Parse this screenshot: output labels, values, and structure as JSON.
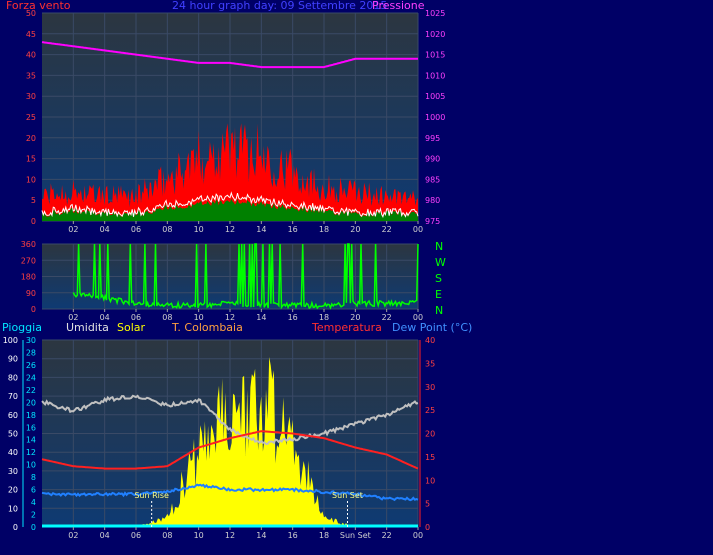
{
  "header": {
    "title": "24 hour graph day: 09 Settembre 2015",
    "left_label": "Forza vento",
    "right_label": "Pressione"
  },
  "compass": [
    "N",
    "W",
    "S",
    "E",
    "N"
  ],
  "bottom_labels": {
    "rain": "Pioggia",
    "humidity": "Umidita",
    "solar": "Solar",
    "station": "T. Colombaia",
    "temperature": "Temperatura",
    "dewpoint": "Dew Point (°C)"
  },
  "annotations": {
    "sunrise": "Sun Rise",
    "sunset": "Sun Set"
  },
  "colors": {
    "wind_gust": "#ff0000",
    "wind_avg": "#ffffff",
    "wind_fill": "#008000",
    "pressure": "#ff00ff",
    "direction": "#00ff00",
    "humidity": "#c0c0c0",
    "solar": "#ffff00",
    "temperature": "#ff2020",
    "dewpoint": "#2080ff",
    "rain": "#00ffff"
  },
  "chart_data": [
    {
      "type": "line",
      "name": "wind-pressure",
      "x_ticks": [
        "02",
        "04",
        "06",
        "08",
        "10",
        "12",
        "14",
        "16",
        "18",
        "20",
        "22",
        "00"
      ],
      "y_left_ticks": [
        0,
        5,
        10,
        15,
        20,
        25,
        30,
        35,
        40,
        45,
        50
      ],
      "ylim_left": [
        0,
        50
      ],
      "y_right_ticks": [
        975,
        980,
        985,
        990,
        995,
        1000,
        1005,
        1010,
        1015,
        1020,
        1025
      ],
      "ylim_right": [
        975,
        1025
      ],
      "x_hours": [
        0,
        2,
        4,
        6,
        8,
        10,
        12,
        14,
        16,
        18,
        20,
        22,
        24
      ],
      "series": [
        {
          "key": "gust",
          "axis": "left",
          "values": [
            6,
            7,
            6,
            6,
            10,
            15,
            18,
            16,
            12,
            8,
            7,
            6,
            5
          ]
        },
        {
          "key": "avg",
          "axis": "left",
          "values": [
            2,
            3,
            2,
            2,
            4,
            5,
            6,
            5,
            4,
            3,
            2,
            2,
            2
          ]
        },
        {
          "key": "pressure",
          "axis": "right",
          "values": [
            1018,
            1017,
            1016,
            1015,
            1014,
            1013,
            1013,
            1012,
            1012,
            1012,
            1014,
            1014,
            1014
          ]
        }
      ]
    },
    {
      "type": "line",
      "name": "wind-direction",
      "x_ticks": [
        "02",
        "04",
        "06",
        "08",
        "10",
        "12",
        "14",
        "16",
        "18",
        "20",
        "22",
        "00"
      ],
      "y_ticks": [
        0,
        90,
        180,
        270,
        360
      ],
      "ylim": [
        0,
        360
      ],
      "x_hours": [
        0,
        2,
        4,
        6,
        8,
        10,
        12,
        14,
        16,
        18,
        20,
        22,
        24
      ],
      "values": [
        20,
        80,
        60,
        30,
        20,
        20,
        30,
        20,
        20,
        20,
        30,
        30,
        40
      ]
    },
    {
      "type": "line",
      "name": "temp-humidity-solar",
      "x_ticks": [
        "02",
        "04",
        "06",
        "08",
        "10",
        "12",
        "14",
        "16",
        "18",
        "Sun Set",
        "22",
        "00"
      ],
      "y_left_ticks": [
        0,
        10,
        20,
        30,
        40,
        50,
        60,
        70,
        80,
        90,
        100
      ],
      "ylim_left": [
        0,
        100
      ],
      "y_rain_ticks": [
        0,
        2,
        4,
        6,
        8,
        10,
        12,
        14,
        16,
        18,
        20,
        22,
        24,
        26,
        28,
        30
      ],
      "ylim_rain": [
        0,
        30
      ],
      "y_right_ticks": [
        0,
        5,
        10,
        15,
        20,
        25,
        30,
        35,
        40
      ],
      "ylim_right": [
        0,
        40
      ],
      "x_hours": [
        0,
        2,
        4,
        6,
        8,
        10,
        12,
        14,
        16,
        18,
        20,
        22,
        24
      ],
      "series": [
        {
          "key": "humidity",
          "axis": "left",
          "values": [
            67,
            62,
            68,
            70,
            65,
            68,
            52,
            45,
            47,
            50,
            55,
            60,
            67
          ]
        },
        {
          "key": "solar",
          "axis": "left",
          "values": [
            0,
            0,
            0,
            0,
            5,
            40,
            60,
            72,
            45,
            5,
            0,
            0,
            0
          ]
        },
        {
          "key": "temperature",
          "axis": "right",
          "values": [
            14.5,
            13,
            12.5,
            12.5,
            13,
            17,
            19,
            20.5,
            20,
            19,
            17,
            15.5,
            12.5
          ]
        },
        {
          "key": "dewpoint",
          "axis": "right",
          "values": [
            7,
            7,
            7,
            7,
            7.5,
            9,
            8,
            8,
            8,
            7.5,
            7,
            6,
            6
          ]
        },
        {
          "key": "rain",
          "axis": "rain",
          "values": [
            0,
            0,
            0,
            0,
            0,
            0,
            0,
            0,
            0,
            0,
            0,
            0,
            0
          ]
        }
      ],
      "sunrise_hour": 7,
      "sunset_hour": 19.5
    }
  ]
}
